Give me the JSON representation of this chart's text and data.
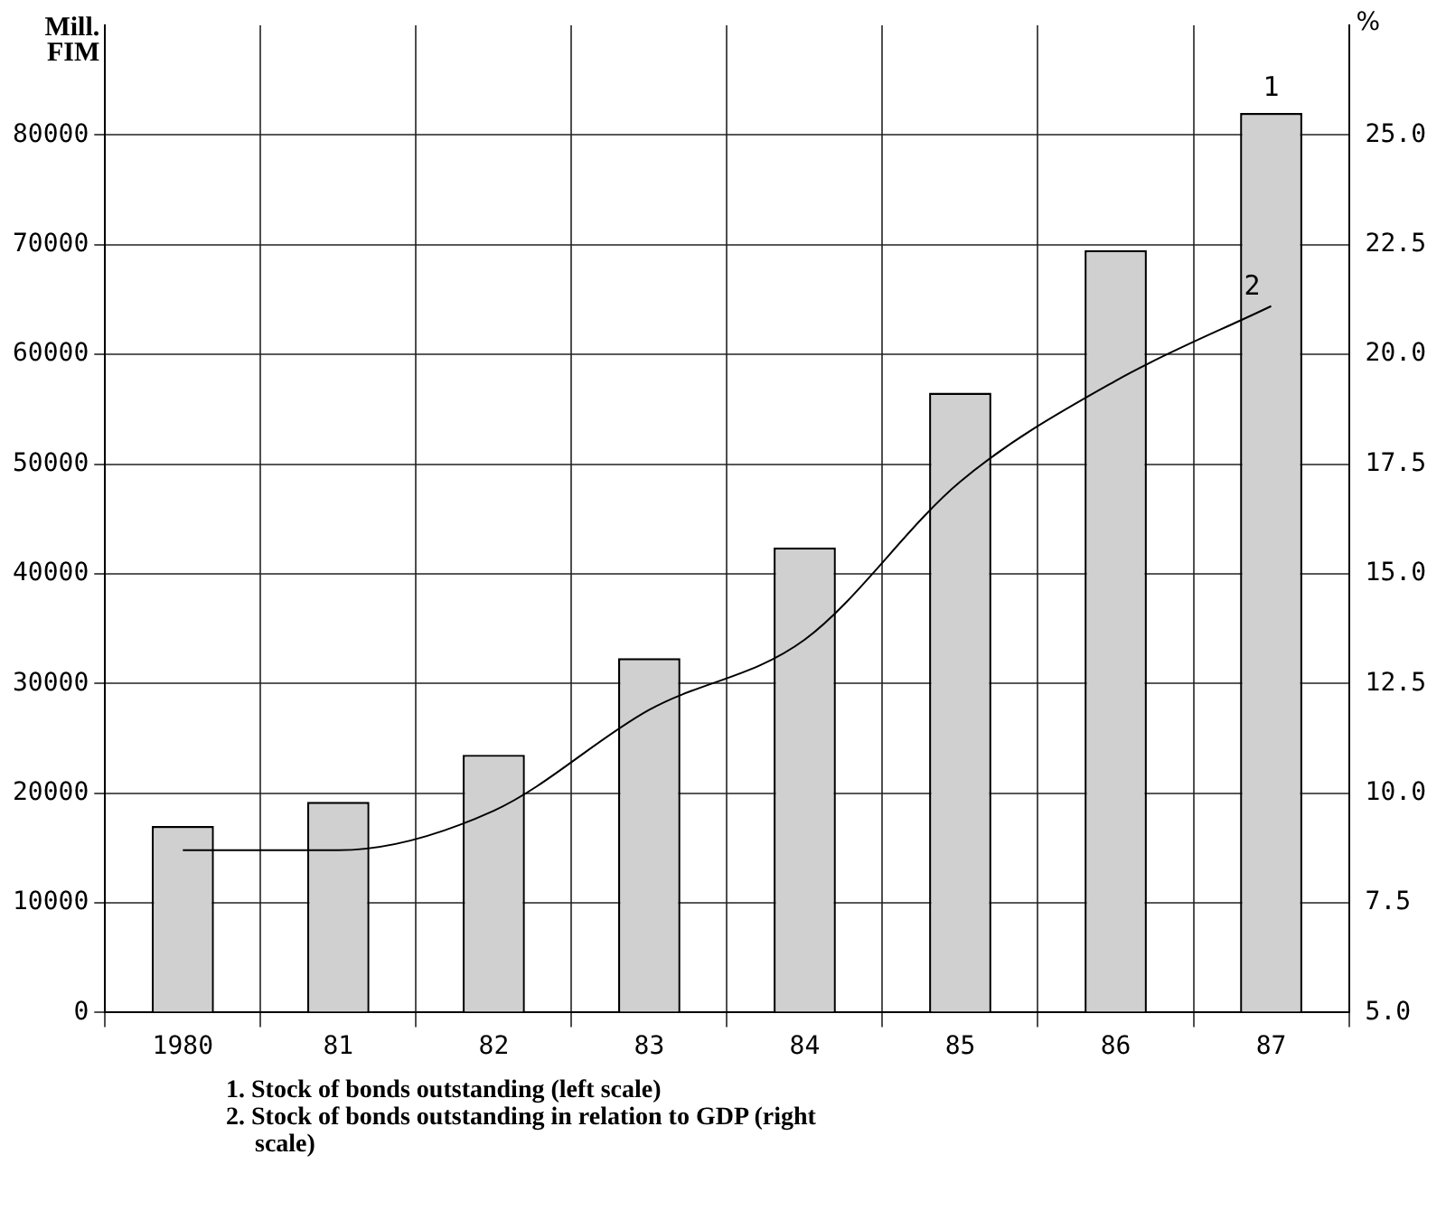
{
  "chart_data": {
    "type": "bar",
    "ylabel": "Mill.\nFIM",
    "y2label": "%",
    "categories": [
      "1980",
      "81",
      "82",
      "83",
      "84",
      "85",
      "86",
      "87"
    ],
    "series": [
      {
        "name": "1",
        "color": "#d0d0d0",
        "values": [
          17000,
          19200,
          23500,
          32300,
          42400,
          56500,
          69500,
          82000
        ]
      },
      {
        "name": "2",
        "type": "line",
        "axis": "y2",
        "color": "#000000",
        "values": [
          8.7,
          8.7,
          9.6,
          11.9,
          13.5,
          17.1,
          19.4,
          21.1
        ]
      }
    ],
    "ylim": [
      0,
      90000
    ],
    "yticks": [
      0,
      10000,
      20000,
      30000,
      40000,
      50000,
      60000,
      70000,
      80000
    ],
    "y2lim": [
      5,
      27.5
    ],
    "y2ticks": [
      {
        "value": 5,
        "label": "5.0"
      },
      {
        "value": 7.5,
        "label": "7.5"
      },
      {
        "value": 10,
        "label": "10.0"
      },
      {
        "value": 12.5,
        "label": "12.5"
      },
      {
        "value": 15,
        "label": "15.0"
      },
      {
        "value": 17.5,
        "label": "17.5"
      },
      {
        "value": 20,
        "label": "20.0"
      },
      {
        "value": 22.5,
        "label": "22.5"
      },
      {
        "value": 25,
        "label": "25.0"
      }
    ],
    "grid": true,
    "legend": false,
    "marker": "none",
    "line_style": "solid",
    "annotations": [
      "1. Stock of bonds outstanding (left scale)",
      "2. Stock of bonds outstanding in relation to GDP (right scale)"
    ]
  }
}
